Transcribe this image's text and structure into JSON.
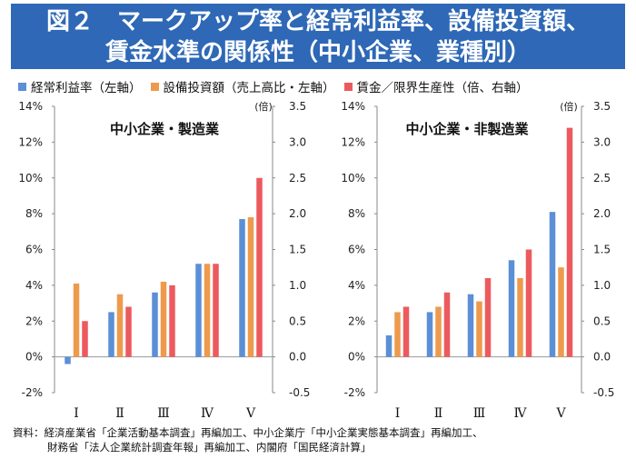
{
  "header": {
    "title_line1": "図２　マークアップ率と経常利益率、設備投資額、",
    "title_line2": "賃金水準の関係性（中小企業、業種別）"
  },
  "source": {
    "line1": "資料：経済産業省「企業活動基本調査」再編加工、中小企業庁「中小企業実態基本調査」再編加工、",
    "line2": "財務省「法人企業統計調査年報」再編加工、内閣府「国民経済計算」"
  },
  "colors": {
    "title_bg": "#2e68b6",
    "series": [
      "#5b8fd6",
      "#ee9a4d",
      "#ec5a5e"
    ]
  },
  "chart_data": [
    {
      "type": "bar",
      "title": "中小企業・製造業",
      "categories": [
        "Ⅰ",
        "Ⅱ",
        "Ⅲ",
        "Ⅳ",
        "Ⅴ"
      ],
      "left_axis": {
        "ylim": [
          -2,
          14
        ],
        "ticks": [
          "-2%",
          "0%",
          "2%",
          "4%",
          "6%",
          "8%",
          "10%",
          "12%",
          "14%"
        ]
      },
      "right_axis": {
        "unit": "(倍)",
        "ylim": [
          -0.5,
          3.5
        ],
        "ticks": [
          "-0.5",
          "0.0",
          "0.5",
          "1.0",
          "1.5",
          "2.0",
          "2.5",
          "3.0",
          "3.5"
        ]
      },
      "series": [
        {
          "name": "経常利益率（左軸）",
          "axis": "left",
          "values": [
            -0.4,
            2.5,
            3.6,
            5.2,
            7.7
          ]
        },
        {
          "name": "設備投資額（売上高比・左軸）",
          "axis": "left",
          "values": [
            4.1,
            3.5,
            4.2,
            5.2,
            7.8
          ]
        },
        {
          "name": "賃金／限界生産性（倍、右軸）",
          "axis": "right",
          "values": [
            0.5,
            0.7,
            1.0,
            1.3,
            2.5
          ]
        }
      ]
    },
    {
      "type": "bar",
      "title": "中小企業・非製造業",
      "categories": [
        "Ⅰ",
        "Ⅱ",
        "Ⅲ",
        "Ⅳ",
        "Ⅴ"
      ],
      "left_axis": {
        "ylim": [
          -2,
          14
        ],
        "ticks": [
          "-2%",
          "0%",
          "2%",
          "4%",
          "6%",
          "8%",
          "10%",
          "12%",
          "14%"
        ]
      },
      "right_axis": {
        "unit": "(倍)",
        "ylim": [
          -0.5,
          3.5
        ],
        "ticks": [
          "-0.5",
          "0.0",
          "0.5",
          "1.0",
          "1.5",
          "2.0",
          "2.5",
          "3.0",
          "3.5"
        ]
      },
      "series": [
        {
          "name": "経常利益率（左軸）",
          "axis": "left",
          "values": [
            1.2,
            2.5,
            3.5,
            5.4,
            8.1
          ]
        },
        {
          "name": "設備投資額（売上高比・左軸）",
          "axis": "left",
          "values": [
            2.5,
            2.8,
            3.1,
            4.4,
            5.0
          ]
        },
        {
          "name": "賃金／限界生産性（倍、右軸）",
          "axis": "right",
          "values": [
            0.7,
            0.9,
            1.1,
            1.5,
            3.2
          ]
        }
      ]
    }
  ]
}
